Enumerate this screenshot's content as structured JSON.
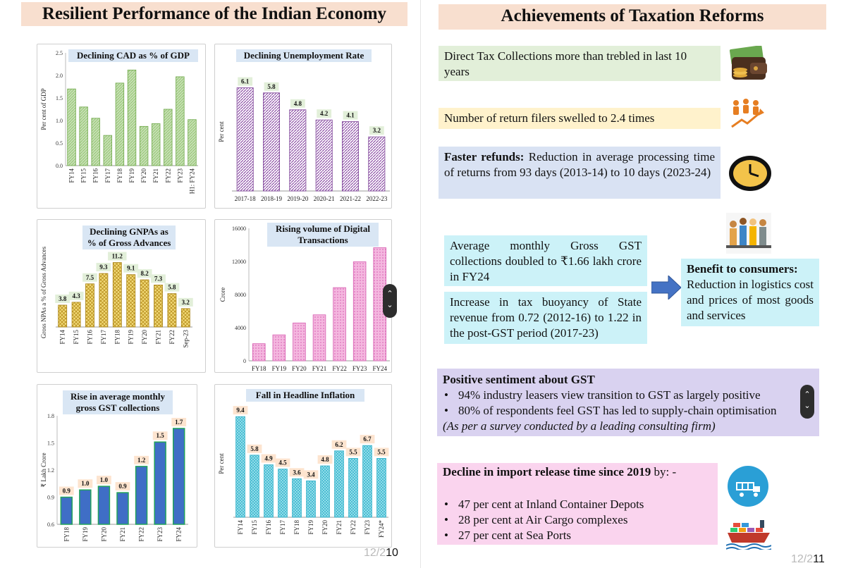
{
  "left": {
    "title": "Resilient Performance of the Indian Economy",
    "page_number": "12/2",
    "page_number_current": "10"
  },
  "right": {
    "title": "Achievements of Taxation Reforms",
    "page_number": "12/2",
    "page_number_current": "11",
    "boxes": {
      "direct_tax": "Direct Tax Collections more than trebled in last 10 years",
      "return_filers": "Number of return filers swelled to 2.4 times",
      "faster_refunds_bold": "Faster refunds:",
      "faster_refunds_text": " Reduction in average processing time of returns from 93 days (2013-14) to 10 days (2023-24)",
      "gst_collections": "Average monthly Gross GST collections doubled to ₹1.66 lakh crore in FY24",
      "tax_buoyancy": "Increase in tax buoyancy of State revenue from 0.72 (2012-16) to 1.22 in the post-GST period (2017-23)",
      "benefit_title": "Benefit to consumers:",
      "benefit_text": "Reduction in logistics cost and prices of most goods and services",
      "sentiment_title": "Positive sentiment about GST",
      "sentiment_items": [
        "94% industry leasers view transition to GST as largely positive",
        "80% of respondents feel GST has led to supply-chain optimisation"
      ],
      "sentiment_note": "(As per a survey conducted by a leading consulting firm)",
      "import_title_bold": "Decline in import release time since 2019",
      "import_title_rest": " by: -",
      "import_items": [
        "47 per cent at Inland Container Depots",
        "28 per cent at Air Cargo complexes",
        "27 per cent at Sea Ports"
      ]
    },
    "icons": [
      "wallet-icon",
      "growth-people-icon",
      "clock-icon",
      "consumers-icon",
      "arrow-right-icon",
      "container-depot-icon",
      "cargo-ship-icon"
    ]
  },
  "colors": {
    "title_bg": "#f8dfcf",
    "green_bar": "#a9d18e",
    "purple_bar": "#9e5fb5",
    "gold_bar": "#d4b13a",
    "pink_bar": "#e98bc8",
    "blue_bar": "#3f6ec6",
    "blue_bar_stroke": "#22a35a",
    "cyan_bar": "#4cc7dd"
  },
  "chart_data": [
    {
      "id": "cad",
      "type": "bar",
      "title": "Declining CAD as % of GDP",
      "ylabel": "Per cent of GDP",
      "xlabel": "",
      "ylim": [
        0,
        2.5
      ],
      "yticks": [
        "0.0",
        "0.5",
        "1.0",
        "1.5",
        "2.0",
        "2.5"
      ],
      "categories": [
        "FY14",
        "FY15",
        "FY16",
        "FY17",
        "FY18",
        "FY19",
        "FY20",
        "FY21",
        "FY22",
        "FY23",
        "H1: FY24"
      ],
      "values": [
        1.7,
        1.3,
        1.05,
        0.67,
        1.83,
        2.12,
        0.87,
        0.93,
        1.25,
        1.97,
        1.02
      ],
      "labels": []
    },
    {
      "id": "unemployment",
      "type": "bar",
      "title": "Declining Unemployment Rate",
      "ylabel": "Per cent",
      "xlabel": "",
      "ylim": [
        0,
        7
      ],
      "yticks": [],
      "categories": [
        "2017-18",
        "2018-19",
        "2019-20",
        "2020-21",
        "2021-22",
        "2022-23"
      ],
      "values": [
        6.1,
        5.8,
        4.8,
        4.2,
        4.1,
        3.2
      ],
      "labels": [
        "6.1",
        "5.8",
        "4.8",
        "4.2",
        "4.1",
        "3.2"
      ]
    },
    {
      "id": "gnpa",
      "type": "bar",
      "title": "Declining GNPAs as % of Gross Advances",
      "ylabel": "Gross NPAs a % of Gross Advances",
      "xlabel": "",
      "ylim": [
        0,
        12
      ],
      "yticks": [],
      "categories": [
        "FY14",
        "FY15",
        "FY16",
        "FY17",
        "FY18",
        "FY19",
        "FY20",
        "FY21",
        "FY22",
        "Sep-23"
      ],
      "values": [
        3.8,
        4.3,
        7.5,
        9.3,
        11.2,
        9.1,
        8.2,
        7.3,
        5.8,
        3.2
      ],
      "labels": [
        "3.8",
        "4.3",
        "7.5",
        "9.3",
        "11.2",
        "9.1",
        "8.2",
        "7.3",
        "5.8",
        "3.2"
      ]
    },
    {
      "id": "digital",
      "type": "bar",
      "title": "Rising volume of Digital Transactions",
      "ylabel": "Crore",
      "xlabel": "",
      "ylim": [
        0,
        16000
      ],
      "yticks": [
        "0",
        "4000",
        "8000",
        "12000",
        "16000"
      ],
      "categories": [
        "FY18",
        "FY19",
        "FY20",
        "FY21",
        "FY22",
        "FY23",
        "FY24"
      ],
      "values": [
        2071,
        3134,
        4572,
        5554,
        8840,
        11960,
        13660
      ],
      "labels": []
    },
    {
      "id": "gst",
      "type": "bar",
      "title": "Rise in average monthly gross GST collections",
      "ylabel": "₹ Lakh Crore",
      "xlabel": "",
      "ylim": [
        0.6,
        1.8
      ],
      "yticks": [
        "0.6",
        "0.9",
        "1.2",
        "1.5",
        "1.8"
      ],
      "categories": [
        "FY18",
        "FY19",
        "FY20",
        "FY21",
        "FY22",
        "FY23",
        "FY24"
      ],
      "values": [
        0.9,
        0.98,
        1.02,
        0.95,
        1.24,
        1.51,
        1.66
      ],
      "labels": [
        "0.9",
        "1.0",
        "1.0",
        "0.9",
        "1.2",
        "1.5",
        "1.7"
      ]
    },
    {
      "id": "inflation",
      "type": "bar",
      "title": "Fall in Headline Inflation",
      "ylabel": "Per cent",
      "xlabel": "",
      "ylim": [
        0,
        10
      ],
      "yticks": [],
      "categories": [
        "FY14",
        "FY15",
        "FY16",
        "FY17",
        "FY18",
        "FY19",
        "FY20",
        "FY21",
        "FY22",
        "FY23",
        "FY24*"
      ],
      "values": [
        9.4,
        5.8,
        4.9,
        4.5,
        3.6,
        3.4,
        4.8,
        6.2,
        5.5,
        6.7,
        5.5
      ],
      "labels": [
        "9.4",
        "5.8",
        "4.9",
        "4.5",
        "3.6",
        "3.4",
        "4.8",
        "6.2",
        "5.5",
        "6.7",
        "5.5"
      ]
    }
  ]
}
